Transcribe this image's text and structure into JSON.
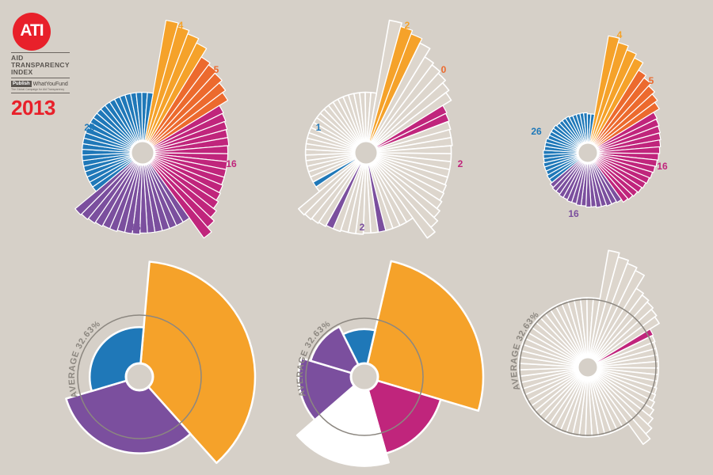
{
  "logo": {
    "badge": "ATI",
    "lines": [
      "AID",
      "TRANSPARENCY",
      "INDEX"
    ],
    "pwyf_box": "Publish",
    "pwyf_name": "WhatYouFund",
    "pwyf_sub": "The Global Campaign for Aid Transparency",
    "year": "2013"
  },
  "colors": {
    "orange": "#f5a22a",
    "red_orange": "#ec6a2e",
    "magenta": "#c0257c",
    "purple": "#7b4f9e",
    "blue": "#1f78b8",
    "white": "#ffffff",
    "empty": "#ddd6cd",
    "ring": "#8c8780",
    "background": "#d6d0c8"
  },
  "chart_data": [
    {
      "type": "radial-bar",
      "position": "top-left",
      "group_counts": [
        {
          "label": "4",
          "color": "orange"
        },
        {
          "label": "5",
          "color": "red_orange"
        },
        {
          "label": "16",
          "color": "magenta"
        },
        {
          "label": "16",
          "color": "purple"
        },
        {
          "label": "26",
          "color": "blue"
        }
      ],
      "segments": [
        {
          "color": "orange",
          "count": 4,
          "values": [
            1.0,
            0.97,
            0.94,
            0.9
          ]
        },
        {
          "color": "red_orange",
          "count": 5,
          "values": [
            0.82,
            0.8,
            0.78,
            0.75,
            0.72
          ]
        },
        {
          "color": "magenta",
          "count": 16,
          "values": [
            0.64,
            0.63,
            0.62,
            0.61,
            0.61,
            0.6,
            0.6,
            0.6,
            0.6,
            0.6,
            0.61,
            0.62,
            0.64,
            0.67,
            0.71,
            0.76
          ]
        },
        {
          "color": "purple",
          "count": 16,
          "values": [
            0.56,
            0.56,
            0.56,
            0.56,
            0.56,
            0.56,
            0.56,
            0.57,
            0.57,
            0.57,
            0.58,
            0.58,
            0.59,
            0.6,
            0.61,
            0.62
          ]
        },
        {
          "color": "blue",
          "count": 26,
          "values": [
            0.4,
            0.4,
            0.4,
            0.4,
            0.4,
            0.4,
            0.4,
            0.4,
            0.4,
            0.4,
            0.4,
            0.4,
            0.4,
            0.4,
            0.4,
            0.4,
            0.4,
            0.4,
            0.4,
            0.4,
            0.4,
            0.4,
            0.4,
            0.4,
            0.4,
            0.4
          ]
        }
      ]
    },
    {
      "type": "radial-bar",
      "position": "top-center",
      "group_counts": [
        {
          "label": "2",
          "color": "orange"
        },
        {
          "label": "0",
          "color": "red_orange"
        },
        {
          "label": "2",
          "color": "magenta"
        },
        {
          "label": "2",
          "color": "purple"
        },
        {
          "label": "1",
          "color": "blue"
        }
      ],
      "segments": [
        {
          "count": 4,
          "highlight": [
            1,
            2
          ],
          "color": "orange",
          "values": [
            1.0,
            0.97,
            0.94,
            0.9
          ]
        },
        {
          "count": 5,
          "highlight": [],
          "color": "red_orange",
          "values": [
            0.82,
            0.8,
            0.78,
            0.75,
            0.72
          ]
        },
        {
          "count": 16,
          "highlight": [
            0,
            1
          ],
          "color": "magenta",
          "values": [
            0.64,
            0.63,
            0.62,
            0.61,
            0.61,
            0.6,
            0.6,
            0.6,
            0.6,
            0.6,
            0.61,
            0.62,
            0.64,
            0.67,
            0.71,
            0.76
          ]
        },
        {
          "count": 16,
          "highlight": [
            4,
            11
          ],
          "color": "purple",
          "values": [
            0.56,
            0.56,
            0.56,
            0.56,
            0.56,
            0.56,
            0.56,
            0.57,
            0.57,
            0.57,
            0.58,
            0.58,
            0.59,
            0.6,
            0.61,
            0.62
          ]
        },
        {
          "count": 26,
          "highlight": [
            1
          ],
          "color": "blue",
          "values": [
            0.4,
            0.4,
            0.4,
            0.4,
            0.4,
            0.4,
            0.4,
            0.4,
            0.4,
            0.4,
            0.4,
            0.4,
            0.4,
            0.4,
            0.4,
            0.4,
            0.4,
            0.4,
            0.4,
            0.4,
            0.4,
            0.4,
            0.4,
            0.4,
            0.4,
            0.4
          ]
        }
      ]
    },
    {
      "type": "radial-bar",
      "position": "top-right",
      "group_counts": [
        {
          "label": "4",
          "color": "orange"
        },
        {
          "label": "5",
          "color": "red_orange"
        },
        {
          "label": "16",
          "color": "magenta"
        },
        {
          "label": "16",
          "color": "purple"
        },
        {
          "label": "26",
          "color": "blue"
        }
      ],
      "segments": [
        {
          "color": "orange",
          "count": 4,
          "values": [
            1.0,
            0.96,
            0.92,
            0.88
          ]
        },
        {
          "color": "red_orange",
          "count": 5,
          "values": [
            0.8,
            0.77,
            0.74,
            0.71,
            0.68
          ]
        },
        {
          "color": "magenta",
          "count": 16,
          "values": [
            0.62,
            0.61,
            0.6,
            0.59,
            0.58,
            0.57,
            0.56,
            0.55,
            0.54,
            0.53,
            0.52,
            0.51,
            0.5,
            0.49,
            0.48,
            0.47
          ]
        },
        {
          "color": "purple",
          "count": 16,
          "values": [
            0.44,
            0.43,
            0.43,
            0.42,
            0.42,
            0.41,
            0.41,
            0.4,
            0.4,
            0.39,
            0.39,
            0.38,
            0.38,
            0.37,
            0.37,
            0.36
          ]
        },
        {
          "color": "blue",
          "count": 26,
          "values": [
            0.34,
            0.34,
            0.33,
            0.33,
            0.33,
            0.32,
            0.32,
            0.32,
            0.31,
            0.31,
            0.31,
            0.3,
            0.3,
            0.3,
            0.3,
            0.29,
            0.29,
            0.29,
            0.29,
            0.28,
            0.28,
            0.28,
            0.28,
            0.28,
            0.27,
            0.27
          ]
        }
      ]
    },
    {
      "type": "radial-area",
      "position": "bottom-left",
      "average_label": "AVERAGE 32.63%",
      "average": 0.3263,
      "segments": [
        {
          "color": "orange",
          "value": 1.0,
          "weight": 0.37
        },
        {
          "color": "purple",
          "value": 0.62,
          "weight": 0.32
        },
        {
          "color": "blue",
          "value": 0.36,
          "weight": 0.31
        }
      ]
    },
    {
      "type": "radial-area",
      "position": "bottom-center",
      "average_label": "AVERAGE 32.63%",
      "average": 0.3263,
      "segments": [
        {
          "color": "orange",
          "value": 1.0,
          "weight": 0.26
        },
        {
          "color": "magenta",
          "value": 0.63,
          "weight": 0.16
        },
        {
          "color": "white",
          "value": 0.72,
          "weight": 0.18
        },
        {
          "color": "purple",
          "value": 0.5,
          "weight": 0.16
        },
        {
          "color": "purple",
          "value": 0.41,
          "weight": 0.13
        },
        {
          "color": "blue",
          "value": 0.33,
          "weight": 0.11
        }
      ]
    },
    {
      "type": "radial-bar",
      "position": "bottom-right",
      "average_label": "AVERAGE 32.63%",
      "average": 0.3263,
      "segments": [
        {
          "count": 4,
          "highlight": [],
          "color": "orange",
          "values": [
            1.0,
            0.96,
            0.93,
            0.9
          ]
        },
        {
          "count": 5,
          "highlight": [],
          "color": "red_orange",
          "values": [
            0.76,
            0.74,
            0.72,
            0.7,
            0.68
          ]
        },
        {
          "count": 16,
          "highlight": [
            0
          ],
          "color": "magenta",
          "values": [
            0.58,
            0.57,
            0.56,
            0.56,
            0.56,
            0.56,
            0.56,
            0.56,
            0.56,
            0.57,
            0.58,
            0.6,
            0.63,
            0.67,
            0.72,
            0.78
          ]
        },
        {
          "count": 16,
          "highlight": [],
          "color": "purple",
          "values": [
            0.55,
            0.55,
            0.55,
            0.55,
            0.55,
            0.55,
            0.55,
            0.55,
            0.55,
            0.55,
            0.55,
            0.55,
            0.55,
            0.55,
            0.55,
            0.55
          ]
        },
        {
          "count": 26,
          "highlight": [],
          "color": "blue",
          "values": [
            0.55,
            0.55,
            0.55,
            0.55,
            0.55,
            0.55,
            0.55,
            0.55,
            0.55,
            0.55,
            0.55,
            0.55,
            0.55,
            0.55,
            0.55,
            0.55,
            0.55,
            0.55,
            0.55,
            0.55,
            0.55,
            0.55,
            0.55,
            0.55,
            0.55,
            0.55
          ]
        }
      ]
    }
  ]
}
